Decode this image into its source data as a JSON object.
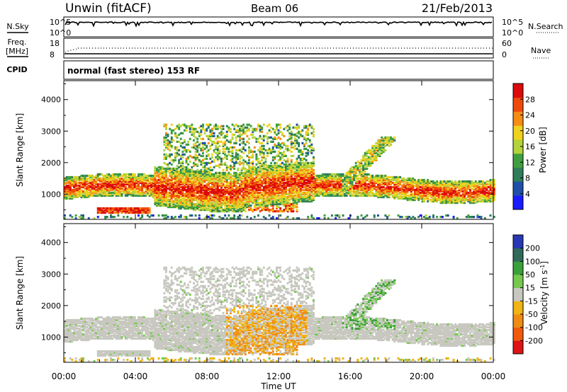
{
  "header": {
    "station": "Unwin (fitACF)",
    "beam": "Beam 06",
    "date": "21/Feb/2013"
  },
  "panels": {
    "nsky": {
      "label": "N.Sky",
      "ticks_left": [
        "10^5",
        "10^0"
      ],
      "ticks_right": [
        "10^5",
        "10^0"
      ],
      "right_label": "N.Search"
    },
    "freq": {
      "label_line1": "Freq.",
      "label_line2": "[MHz]",
      "ticks_left": [
        "18",
        "8"
      ],
      "ticks_right": [
        "60",
        "0"
      ],
      "right_label": "Nave"
    },
    "cpid": {
      "label": "CPID",
      "text": "normal (fast stereo) 153 RF"
    }
  },
  "colors": {
    "power": [
      "#1a1aff",
      "#1f4fa8",
      "#2f7d5a",
      "#3f9f3f",
      "#b4d23a",
      "#f0d21e",
      "#f58c14",
      "#f04a0a",
      "#dc0a0a"
    ],
    "velocity": [
      "#2838b4",
      "#2f6a5a",
      "#3aa03a",
      "#78c850",
      "#c8c8c0",
      "#f0b414",
      "#f08c14",
      "#f05a0a",
      "#dc1414"
    ],
    "scatter_gray": "#c8c8c0"
  },
  "chart_data": [
    {
      "type": "heatmap",
      "name": "power",
      "ylabel": "Slant Range [km]",
      "ylim": [
        200,
        4600
      ],
      "yticks": [
        "1000",
        "2000",
        "3000",
        "4000"
      ],
      "ytick_values": [
        1000,
        2000,
        3000,
        4000
      ],
      "xlim": [
        0,
        24
      ],
      "colorbar": {
        "label": "Power [dB]",
        "ticks": [
          "4",
          "8",
          "12",
          "16",
          "20",
          "24",
          "28"
        ],
        "tick_values": [
          4,
          8,
          12,
          16,
          20,
          24,
          28
        ],
        "range": [
          0,
          32
        ]
      }
    },
    {
      "type": "heatmap",
      "name": "velocity",
      "ylabel": "Slant Range [km]",
      "ylim": [
        200,
        4600
      ],
      "yticks": [
        "1000",
        "2000",
        "3000",
        "4000"
      ],
      "ytick_values": [
        1000,
        2000,
        3000,
        4000
      ],
      "xlim": [
        0,
        24
      ],
      "xlabel": "Time UT",
      "xticks": [
        "00:00",
        "04:00",
        "08:00",
        "12:00",
        "16:00",
        "20:00",
        "00:00"
      ],
      "xtick_values": [
        0,
        4,
        8,
        12,
        16,
        20,
        24
      ],
      "colorbar": {
        "label": "Velocity [m s",
        "label_sup": "-1",
        "label_end": "]",
        "ticks": [
          "200",
          "100",
          "50",
          "15",
          "-15",
          "-50",
          "-100",
          "-200"
        ]
      }
    }
  ]
}
